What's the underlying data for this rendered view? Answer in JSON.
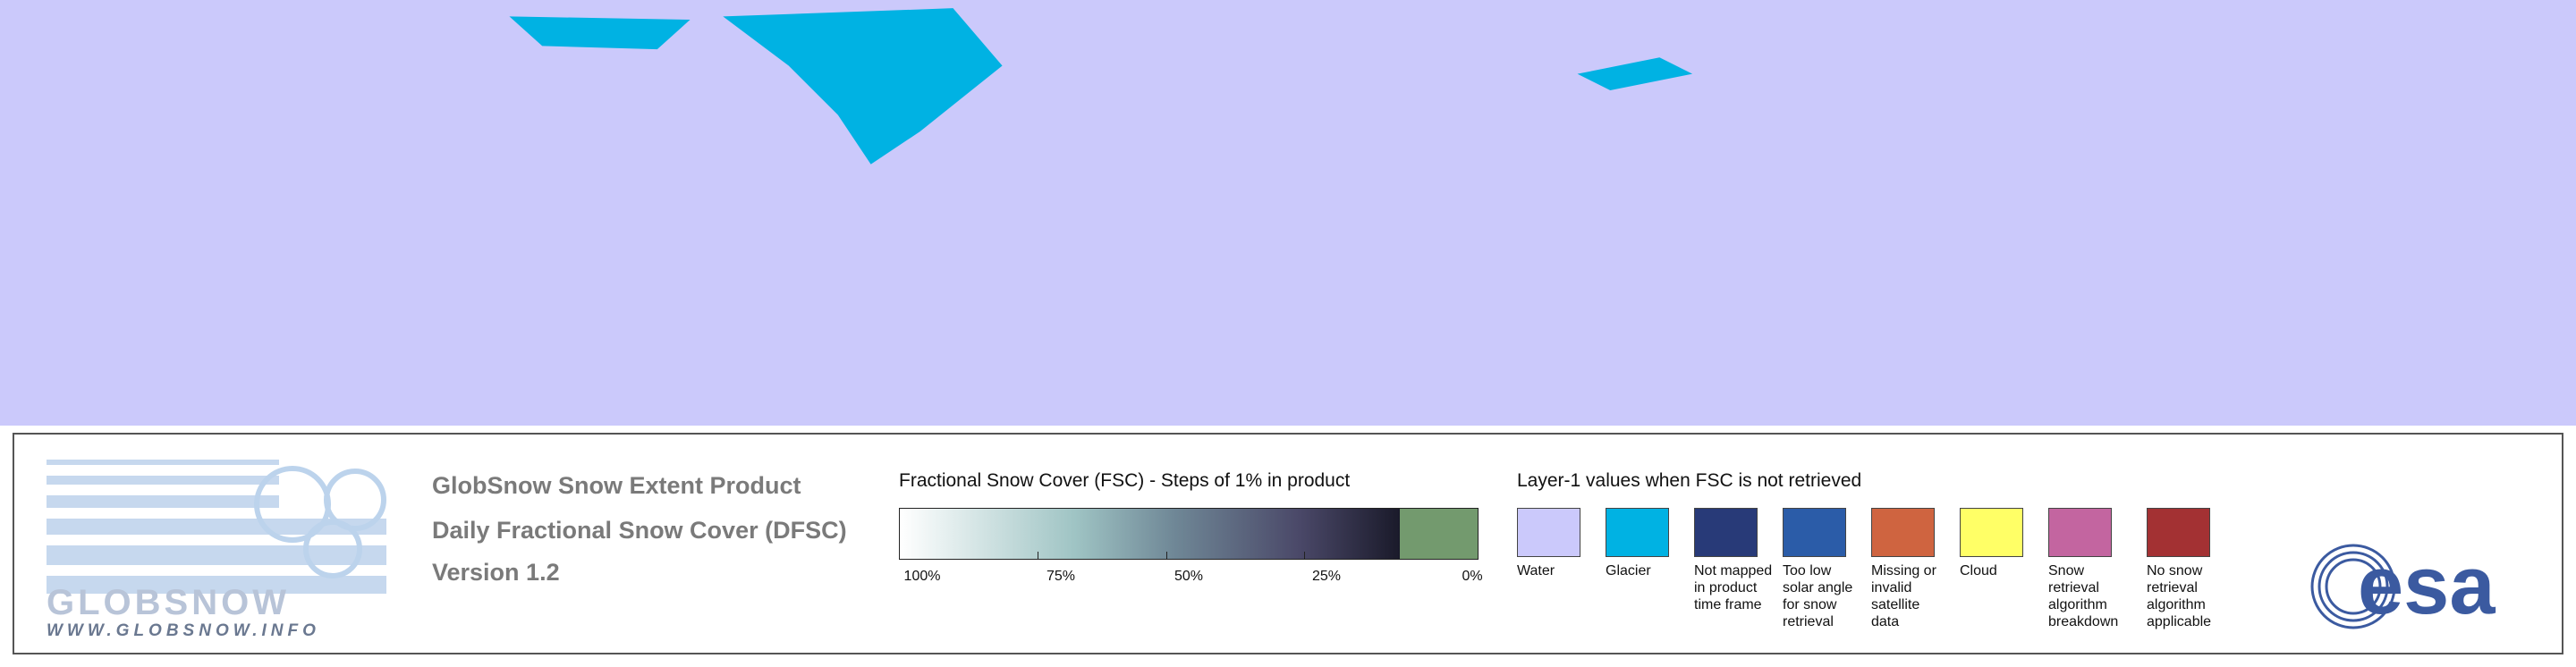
{
  "logo": {
    "name": "GLOBSNOW",
    "url": "WWW.GLOBSNOW.INFO"
  },
  "product": {
    "lines": [
      "GlobSnow Snow Extent Product",
      "Daily Fractional Snow Cover (DFSC)",
      "Version 1.2"
    ]
  },
  "fsc_legend": {
    "title": "Fractional Snow Cover (FSC) - Steps of 1% in product",
    "labels": [
      "100%",
      "75%",
      "50%",
      "25%",
      "0%"
    ]
  },
  "layer1_legend": {
    "title": "Layer-1 values when FSC is not retrieved",
    "items": [
      {
        "label": "Water",
        "color": "#cbc9fb"
      },
      {
        "label": "Glacier",
        "color": "#00b2e3"
      },
      {
        "label": "Not mapped in product time frame",
        "color": "#283a78"
      },
      {
        "label": "Too low solar angle for snow retrieval",
        "color": "#2b5ca8"
      },
      {
        "label": "Missing or invalid satellite data",
        "color": "#cf6440"
      },
      {
        "label": "Cloud",
        "color": "#ffff66"
      },
      {
        "label": "Snow retrieval algorithm breakdown",
        "color": "#c365a0"
      },
      {
        "label": "No snow retrieval algorithm applicable",
        "color": "#a33133"
      }
    ]
  },
  "agency": "esa"
}
